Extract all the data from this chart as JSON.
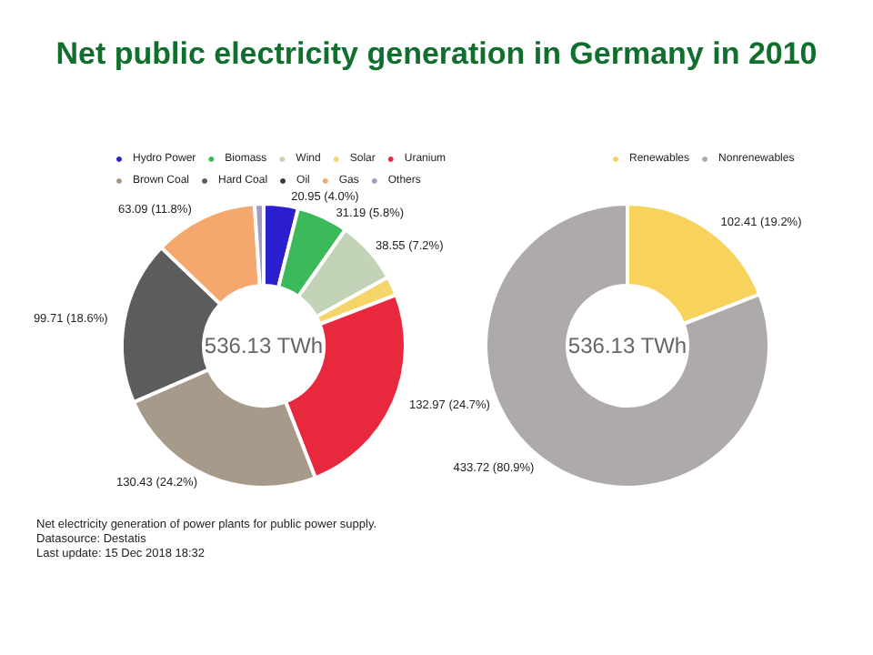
{
  "chart_data": [
    {
      "type": "donut",
      "title": "Net public electricity generation in Germany in 2010",
      "categories": [
        "Hydro Power",
        "Biomass",
        "Wind",
        "Solar",
        "Uranium",
        "Brown Coal",
        "Hard Coal",
        "Oil",
        "Gas",
        "Others"
      ],
      "values": [
        20.95,
        31.19,
        38.55,
        11.72,
        132.97,
        130.43,
        99.71,
        null,
        63.09,
        5.52
      ],
      "colors": [
        "#2b1fd0",
        "#3cb95a",
        "#c3d3b8",
        "#f5d56a",
        "#e8283c",
        "#a89a8a",
        "#5c5c5c",
        "#3a3a3a",
        "#f4a86e",
        "#a49ac8"
      ],
      "value_labels": [
        "20.95 (4.0%)",
        "31.19 (5.8%)",
        "38.55 (7.2%)",
        null,
        "132.97 (24.7%)",
        "130.43 (24.2%)",
        "99.71 (18.6%)",
        null,
        "63.09 (11.8%)",
        null
      ],
      "legend": "top",
      "annotations": [
        "536.13 TWh",
        "Net electricity generation of power plants for public power supply.",
        "Datasource: Destatis",
        "Last update: 15 Dec 2018 18:32"
      ]
    },
    {
      "type": "donut",
      "categories": [
        "Renewables",
        "Nonrenewables"
      ],
      "values": [
        102.41,
        433.72
      ],
      "colors": [
        "#f7d35c",
        "#aeaaaa"
      ],
      "value_labels": [
        "102.41 (19.2%)",
        "433.72 (80.9%)"
      ],
      "legend": "top",
      "annotations": [
        "536.13 TWh"
      ]
    }
  ]
}
